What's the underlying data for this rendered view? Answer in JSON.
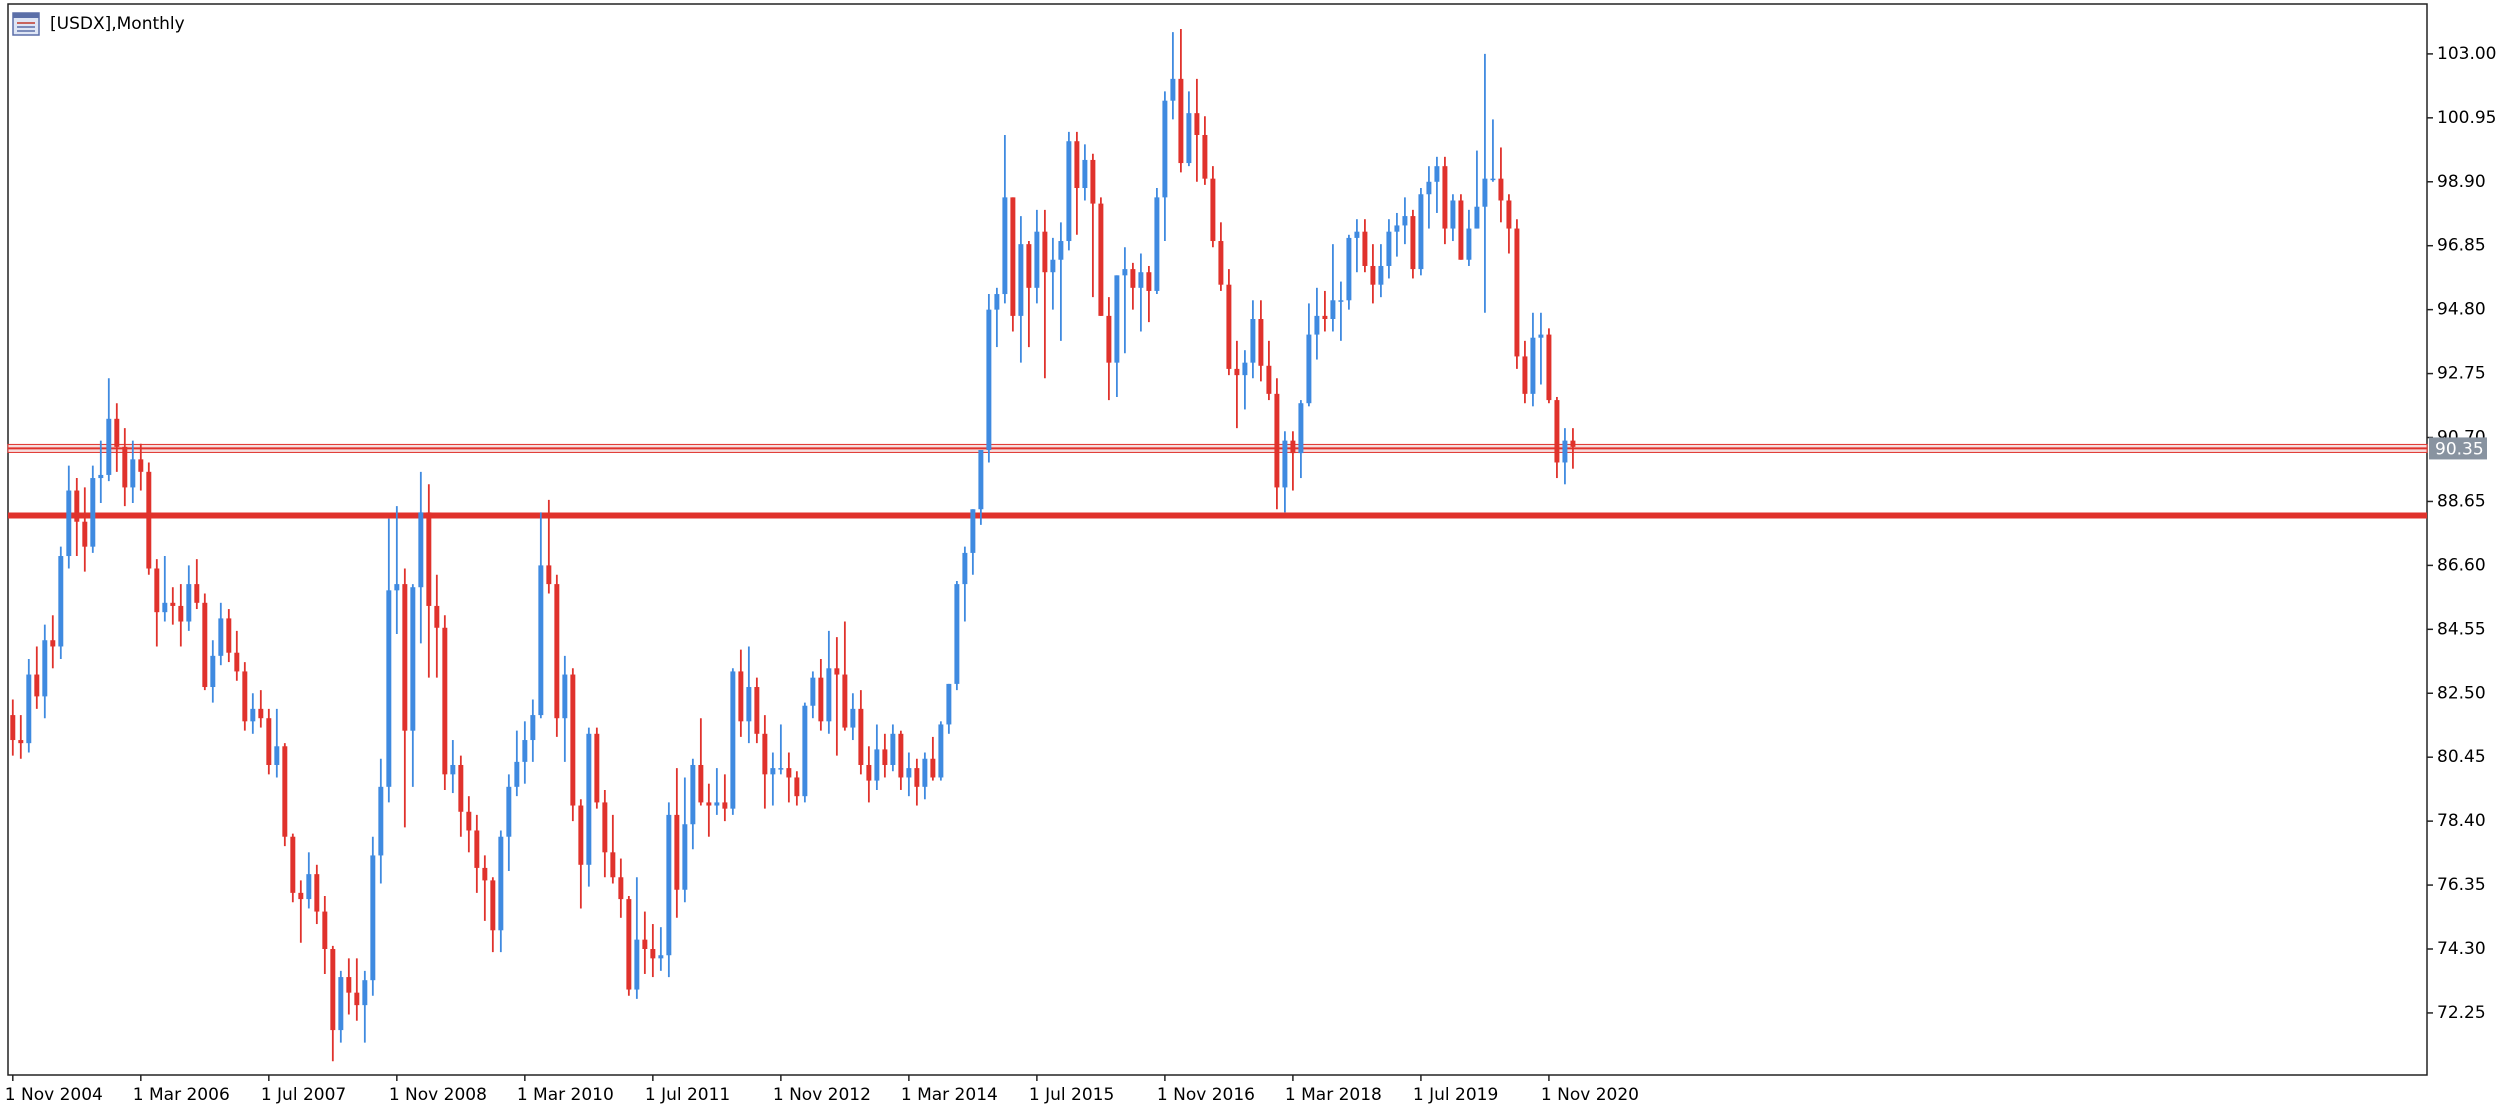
{
  "chart_data": {
    "type": "candlestick",
    "title": "[USDX],Monthly",
    "up_color": "#3f8ae0",
    "down_color": "#e0322c",
    "series": {
      "open": [
        81.8,
        81.0,
        80.9,
        83.1,
        82.4,
        84.2,
        84.0,
        86.9,
        89.0,
        88.0,
        87.2,
        89.4,
        89.5,
        91.3,
        90.4,
        89.1,
        90.0,
        89.6,
        86.5,
        85.1,
        85.4,
        85.3,
        84.8,
        86.0,
        85.4,
        82.7,
        83.7,
        84.9,
        83.8,
        83.2,
        81.6,
        82.0,
        81.7,
        80.2,
        80.8,
        77.9,
        76.1,
        75.9,
        76.7,
        75.5,
        74.3,
        71.7,
        73.4,
        72.9,
        72.5,
        73.3,
        77.3,
        79.5,
        85.8,
        86.0,
        81.3,
        85.9,
        88.3,
        85.3,
        84.6,
        79.9,
        80.2,
        78.7,
        78.1,
        76.9,
        76.5,
        74.9,
        77.9,
        79.5,
        80.3,
        81.0,
        81.8,
        86.6,
        86.0,
        81.7,
        83.1,
        78.9,
        77.0,
        81.2,
        79.0,
        77.4,
        76.6,
        75.9,
        73.0,
        74.6,
        74.3,
        74.0,
        74.1,
        78.6,
        76.2,
        78.3,
        80.2,
        79.0,
        78.9,
        79.0,
        78.8,
        83.2,
        81.6,
        82.7,
        81.2,
        79.9,
        80.1,
        80.1,
        79.8,
        79.2,
        82.1,
        83.0,
        81.6,
        83.3,
        83.1,
        81.4,
        82.0,
        80.2,
        79.7,
        80.7,
        80.2,
        81.2,
        79.8,
        80.1,
        79.5,
        80.4,
        79.8,
        81.5,
        82.8,
        86.0,
        87.0,
        88.4,
        90.3,
        94.8,
        95.3,
        98.4,
        94.6,
        96.9,
        95.5,
        97.3,
        96.0,
        96.4,
        97.0,
        100.2,
        98.7,
        99.6,
        98.2,
        94.6,
        93.1,
        95.9,
        96.1,
        95.5,
        96.0,
        95.4,
        98.4,
        101.5,
        102.2,
        99.5,
        101.1,
        100.4,
        99.0,
        97.0,
        95.6,
        92.9,
        92.7,
        93.1,
        94.5,
        93.0,
        92.1,
        89.1,
        90.6,
        90.2,
        91.8,
        94.0,
        94.6,
        94.5,
        95.1,
        95.1,
        97.1,
        97.3,
        96.2,
        95.6,
        96.2,
        97.3,
        97.5,
        97.8,
        96.1,
        98.5,
        98.9,
        99.4,
        97.4,
        98.3,
        96.4,
        97.4,
        98.1,
        99.0,
        99.0,
        98.3,
        97.4,
        93.3,
        92.1,
        93.9,
        94.0,
        91.9,
        89.9,
        90.6
      ],
      "high": [
        82.3,
        81.8,
        83.6,
        84.0,
        84.7,
        85.0,
        87.2,
        89.8,
        89.4,
        89.1,
        89.8,
        90.6,
        92.6,
        91.8,
        91.0,
        90.6,
        90.5,
        89.9,
        86.8,
        86.9,
        85.9,
        86.0,
        86.6,
        86.8,
        85.7,
        84.2,
        85.4,
        85.2,
        84.5,
        83.5,
        82.5,
        82.6,
        82.0,
        82.0,
        80.9,
        78.0,
        76.5,
        77.4,
        77.0,
        76.0,
        74.4,
        73.6,
        74.0,
        74.0,
        73.6,
        77.9,
        80.4,
        88.1,
        88.5,
        86.5,
        86.0,
        89.6,
        89.2,
        86.3,
        85.0,
        81.0,
        80.5,
        79.2,
        78.6,
        77.3,
        76.6,
        78.1,
        79.9,
        81.3,
        81.6,
        82.3,
        88.3,
        88.7,
        86.3,
        83.7,
        83.3,
        79.1,
        81.4,
        81.4,
        79.4,
        78.6,
        77.2,
        76.0,
        76.6,
        75.5,
        75.1,
        75.0,
        79.0,
        80.1,
        79.8,
        80.4,
        81.7,
        79.6,
        80.1,
        79.9,
        83.3,
        83.9,
        84.0,
        83.0,
        81.8,
        80.6,
        81.5,
        80.6,
        80.0,
        82.2,
        83.2,
        83.6,
        84.5,
        84.3,
        84.8,
        82.5,
        82.6,
        80.8,
        81.5,
        81.2,
        81.5,
        81.3,
        80.6,
        80.4,
        80.6,
        81.1,
        81.6,
        82.8,
        86.1,
        87.2,
        88.4,
        90.3,
        95.3,
        95.5,
        100.4,
        98.4,
        97.8,
        97.0,
        98.0,
        98.0,
        97.1,
        97.6,
        100.5,
        100.5,
        100.1,
        99.8,
        98.4,
        95.2,
        95.9,
        96.8,
        96.3,
        96.6,
        96.2,
        98.7,
        101.8,
        103.7,
        103.8,
        101.8,
        102.2,
        101.0,
        99.4,
        97.6,
        96.1,
        93.8,
        93.5,
        95.1,
        95.1,
        93.8,
        92.6,
        90.9,
        90.9,
        91.9,
        95.0,
        95.5,
        95.4,
        96.9,
        95.7,
        97.2,
        97.7,
        97.7,
        96.9,
        96.9,
        97.7,
        97.9,
        98.4,
        98.0,
        98.7,
        99.4,
        99.7,
        99.7,
        98.5,
        98.5,
        98.0,
        99.9,
        103.0,
        100.9,
        100.0,
        98.5,
        97.7,
        93.8,
        94.7,
        94.7,
        94.2,
        92.0,
        91.0,
        91.0
      ],
      "low": [
        80.5,
        80.4,
        80.6,
        82.0,
        81.7,
        83.3,
        83.6,
        86.5,
        86.9,
        86.4,
        87.0,
        88.6,
        89.3,
        89.6,
        88.5,
        88.6,
        89.0,
        86.3,
        84.0,
        84.8,
        84.7,
        84.0,
        84.5,
        85.2,
        82.6,
        82.2,
        83.4,
        83.5,
        82.9,
        81.3,
        81.2,
        81.4,
        79.9,
        79.8,
        77.6,
        75.8,
        74.5,
        75.6,
        75.1,
        73.5,
        70.7,
        71.3,
        72.2,
        72.0,
        71.3,
        72.8,
        76.4,
        79.0,
        84.4,
        78.2,
        79.5,
        84.1,
        83.0,
        83.0,
        79.4,
        79.3,
        77.9,
        77.4,
        76.1,
        75.2,
        74.2,
        74.2,
        76.8,
        79.2,
        79.6,
        80.3,
        81.7,
        85.7,
        81.1,
        80.3,
        78.4,
        75.6,
        76.3,
        78.8,
        76.6,
        76.4,
        75.3,
        72.8,
        72.7,
        73.5,
        73.4,
        73.6,
        73.4,
        75.3,
        75.8,
        77.5,
        78.9,
        77.9,
        78.6,
        78.4,
        78.6,
        81.1,
        80.9,
        80.9,
        78.8,
        78.9,
        79.9,
        79.0,
        78.9,
        79.0,
        81.7,
        81.3,
        81.2,
        80.5,
        81.3,
        81.0,
        79.9,
        79.0,
        79.4,
        79.8,
        80.0,
        79.4,
        79.2,
        78.9,
        79.1,
        79.7,
        79.7,
        81.2,
        82.6,
        84.8,
        86.3,
        87.9,
        89.9,
        93.6,
        95.0,
        94.1,
        93.1,
        93.6,
        95.0,
        92.6,
        94.8,
        93.8,
        96.7,
        97.2,
        98.3,
        95.2,
        94.6,
        91.9,
        92.0,
        93.4,
        94.8,
        94.1,
        94.4,
        95.3,
        97.0,
        100.9,
        99.2,
        99.4,
        98.9,
        98.8,
        96.8,
        95.4,
        92.7,
        91.0,
        91.6,
        92.6,
        92.5,
        91.9,
        88.4,
        88.3,
        89.0,
        89.4,
        91.7,
        93.2,
        94.1,
        94.1,
        93.8,
        94.8,
        96.0,
        96.0,
        95.0,
        95.2,
        95.8,
        96.5,
        96.9,
        95.8,
        95.9,
        97.4,
        97.9,
        96.9,
        97.0,
        96.4,
        96.2,
        97.4,
        94.7,
        98.9,
        97.6,
        96.6,
        92.9,
        91.8,
        91.7,
        92.4,
        91.8,
        89.4,
        89.2,
        89.7
      ],
      "close": [
        81.0,
        80.9,
        83.1,
        82.4,
        84.2,
        84.0,
        86.9,
        89.0,
        88.0,
        87.2,
        89.4,
        89.5,
        91.3,
        90.4,
        89.1,
        90.0,
        89.6,
        86.5,
        85.1,
        85.4,
        85.3,
        84.8,
        86.0,
        85.4,
        82.7,
        83.7,
        84.9,
        83.8,
        83.2,
        81.6,
        82.0,
        81.7,
        80.2,
        80.8,
        77.9,
        76.1,
        75.9,
        76.7,
        75.5,
        74.3,
        71.7,
        73.4,
        72.9,
        72.5,
        73.3,
        77.3,
        79.5,
        85.8,
        86.0,
        81.3,
        85.9,
        88.3,
        85.3,
        84.6,
        79.9,
        80.2,
        78.7,
        78.1,
        76.9,
        76.5,
        74.9,
        77.9,
        79.5,
        80.3,
        81.0,
        81.8,
        86.6,
        86.0,
        81.7,
        83.1,
        78.9,
        77.0,
        81.2,
        79.0,
        77.4,
        76.6,
        75.9,
        73.0,
        74.6,
        74.3,
        74.0,
        74.1,
        78.6,
        76.2,
        78.3,
        80.2,
        79.0,
        78.9,
        79.0,
        78.8,
        83.2,
        81.6,
        82.7,
        81.2,
        79.9,
        80.1,
        80.1,
        79.8,
        79.2,
        82.1,
        83.0,
        81.6,
        83.3,
        83.1,
        81.4,
        82.0,
        80.2,
        79.7,
        80.7,
        80.2,
        81.2,
        79.8,
        80.1,
        79.5,
        80.4,
        79.8,
        81.5,
        82.8,
        86.0,
        87.0,
        88.4,
        90.3,
        94.8,
        95.3,
        98.4,
        94.6,
        96.9,
        95.5,
        97.3,
        96.0,
        96.4,
        97.0,
        100.2,
        98.7,
        99.6,
        98.2,
        94.6,
        93.1,
        95.9,
        96.1,
        95.5,
        96.0,
        95.4,
        98.4,
        101.5,
        102.2,
        99.5,
        101.1,
        100.4,
        99.0,
        97.0,
        95.6,
        92.9,
        92.7,
        93.1,
        94.5,
        93.0,
        92.1,
        89.1,
        90.6,
        90.2,
        91.8,
        94.0,
        94.6,
        94.5,
        95.1,
        95.1,
        97.1,
        97.3,
        96.2,
        95.6,
        96.2,
        97.3,
        97.5,
        97.8,
        96.1,
        98.5,
        98.9,
        99.4,
        97.4,
        98.3,
        96.4,
        97.4,
        98.1,
        99.0,
        99.0,
        98.3,
        97.4,
        93.3,
        92.1,
        93.9,
        94.0,
        91.9,
        89.9,
        90.6,
        90.4
      ]
    },
    "xlim": [
      -0.6,
      301.75
    ],
    "xticks": [
      {
        "value": 0,
        "label": "1 Nov 2004"
      },
      {
        "value": 16,
        "label": "1 Mar 2006"
      },
      {
        "value": 32,
        "label": "1 Jul 2007"
      },
      {
        "value": 48,
        "label": "1 Nov 2008"
      },
      {
        "value": 64,
        "label": "1 Mar 2010"
      },
      {
        "value": 80,
        "label": "1 Jul 2011"
      },
      {
        "value": 96,
        "label": "1 Nov 2012"
      },
      {
        "value": 112,
        "label": "1 Mar 2014"
      },
      {
        "value": 128,
        "label": "1 Jul 2015"
      },
      {
        "value": 144,
        "label": "1 Nov 2016"
      },
      {
        "value": 160,
        "label": "1 Mar 2018"
      },
      {
        "value": 176,
        "label": "1 Jul 2019"
      },
      {
        "value": 192,
        "label": "1 Nov 2020"
      }
    ],
    "ylim": [
      70.26,
      104.6
    ],
    "yticks": [
      {
        "value": 72.25,
        "label": "72.25"
      },
      {
        "value": 74.3,
        "label": "74.30"
      },
      {
        "value": 76.35,
        "label": "76.35"
      },
      {
        "value": 78.4,
        "label": "78.40"
      },
      {
        "value": 80.45,
        "label": "80.45"
      },
      {
        "value": 82.5,
        "label": "82.50"
      },
      {
        "value": 84.55,
        "label": "84.55"
      },
      {
        "value": 86.6,
        "label": "86.60"
      },
      {
        "value": 88.65,
        "label": "88.65"
      },
      {
        "value": 90.7,
        "label": "90.70"
      },
      {
        "value": 92.75,
        "label": "92.75"
      },
      {
        "value": 94.8,
        "label": "94.80"
      },
      {
        "value": 96.85,
        "label": "96.85"
      },
      {
        "value": 98.9,
        "label": "98.90"
      },
      {
        "value": 100.95,
        "label": "100.95"
      },
      {
        "value": 103,
        "label": "103.00"
      }
    ],
    "hlines": [
      {
        "value": 90.35,
        "color": "#e0322c"
      },
      {
        "value": 88.2,
        "color": "#e0322c"
      }
    ]
  }
}
